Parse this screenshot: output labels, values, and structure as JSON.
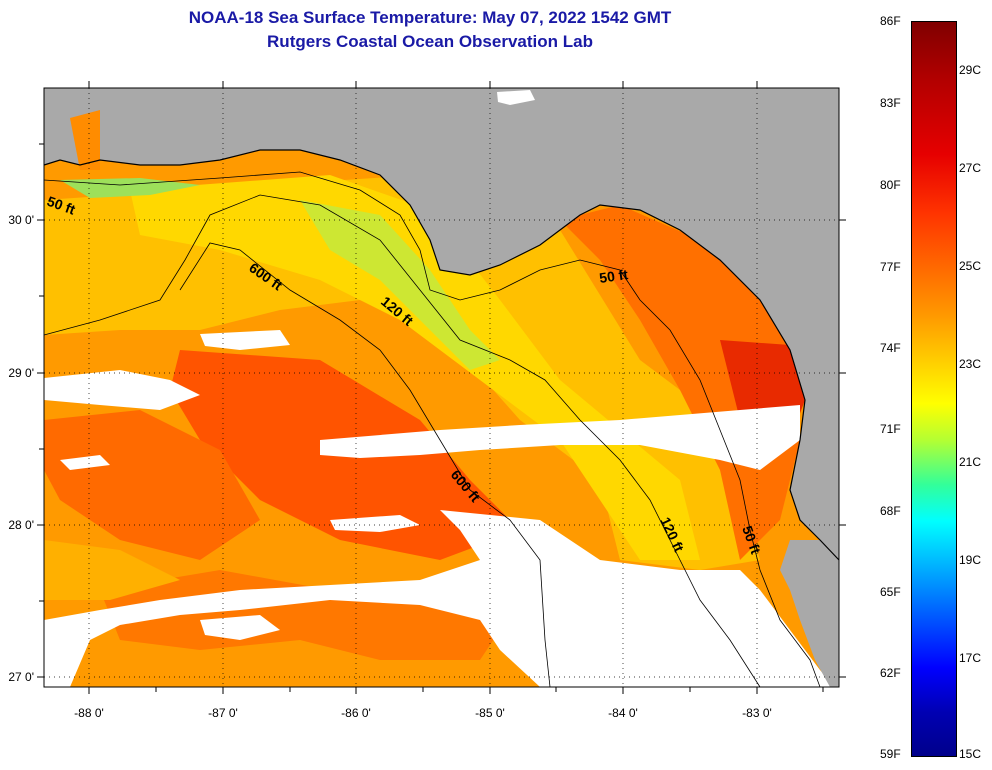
{
  "title": "NOAA-18 Sea Surface Temperature:  May 07, 2022 1542 GMT",
  "subtitle": "Rutgers Coastal Ocean Observation Lab",
  "axes": {
    "x_ticks": [
      "-88 0'",
      "-87 0'",
      "-86 0'",
      "-85 0'",
      "-84 0'",
      "-83 0'"
    ],
    "y_ticks": [
      "30 0'",
      "29 0'",
      "28 0'",
      "27 0'"
    ]
  },
  "contours": {
    "c50a": "50 ft",
    "c50b": "50 ft",
    "c50c": "50 ft",
    "c120a": "120 ft",
    "c120b": "120 ft",
    "c600a": "600 ft",
    "c600b": "600 ft"
  },
  "colorbar": {
    "fahrenheit": [
      "86F",
      "83F",
      "80F",
      "77F",
      "74F",
      "71F",
      "68F",
      "65F",
      "62F",
      "59F"
    ],
    "celsius": [
      "29C",
      "27C",
      "25C",
      "23C",
      "21C",
      "19C",
      "17C",
      "15C"
    ]
  },
  "colors": {
    "land": "#a9a9a9",
    "cloud": "#ffffff",
    "title": "#1a1aa6",
    "warm_orange": "#ff8a00",
    "yellow_orange": "#ffb400",
    "yellow": "#ffd700",
    "greenish": "#c8ee40",
    "red_orange": "#ff5a00",
    "red": "#e83000"
  }
}
